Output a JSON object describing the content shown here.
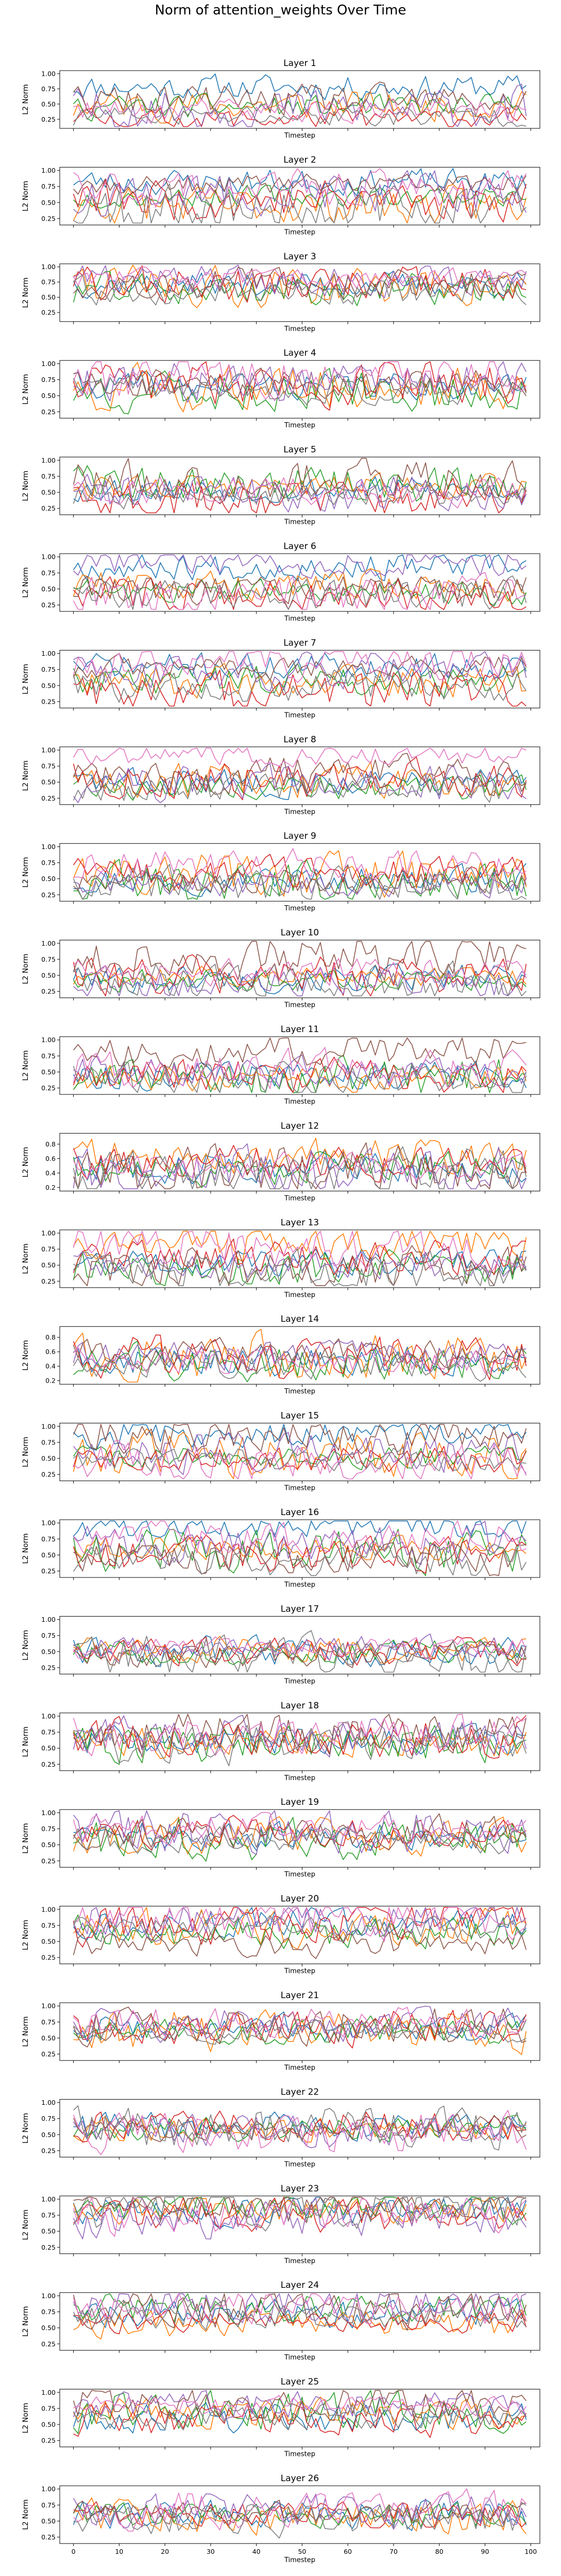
{
  "figure": {
    "title": "Norm of attention_weights Over Time"
  },
  "colors": [
    "#1f77b4",
    "#ff7f0e",
    "#2ca02c",
    "#d62728",
    "#9467bd",
    "#8c564b",
    "#e377c2",
    "#7f7f7f"
  ],
  "chart_data": {
    "type": "line",
    "xlim": [
      -3,
      102
    ],
    "x_ticks": [
      0,
      10,
      20,
      30,
      40,
      50,
      60,
      70,
      80,
      90,
      100
    ],
    "xlabel": "Timestep",
    "ylabel": "L2 Norm",
    "grid": false,
    "n_timesteps": 100,
    "series_per_panel": 8,
    "panels": [
      {
        "title": "Layer 1",
        "ylim": [
          0.1,
          1.05
        ],
        "yticks": [
          0.25,
          0.5,
          0.75,
          1.0
        ],
        "seed": 11,
        "levels": [
          0.78,
          0.48,
          0.45,
          0.25,
          0.42,
          0.55,
          0.38,
          0.3
        ]
      },
      {
        "title": "Layer 2",
        "ylim": [
          0.15,
          1.05
        ],
        "yticks": [
          0.25,
          0.5,
          0.75,
          1.0
        ],
        "seed": 23,
        "levels": [
          0.82,
          0.45,
          0.6,
          0.55,
          0.65,
          0.78,
          0.72,
          0.4
        ]
      },
      {
        "title": "Layer 3",
        "ylim": [
          0.1,
          1.05
        ],
        "yticks": [
          0.25,
          0.5,
          0.75,
          1.0
        ],
        "seed": 37,
        "levels": [
          0.72,
          0.68,
          0.62,
          0.7,
          0.78,
          0.74,
          0.8,
          0.6
        ]
      },
      {
        "title": "Layer 4",
        "ylim": [
          0.15,
          1.05
        ],
        "yticks": [
          0.25,
          0.5,
          0.75,
          1.0
        ],
        "seed": 41,
        "levels": [
          0.66,
          0.62,
          0.55,
          0.7,
          0.72,
          0.68,
          0.78,
          0.6
        ]
      },
      {
        "title": "Layer 5",
        "ylim": [
          0.15,
          1.05
        ],
        "yticks": [
          0.25,
          0.5,
          0.75,
          1.0
        ],
        "seed": 53,
        "levels": [
          0.55,
          0.58,
          0.62,
          0.4,
          0.48,
          0.7,
          0.52,
          0.45
        ]
      },
      {
        "title": "Layer 6",
        "ylim": [
          0.15,
          1.05
        ],
        "yticks": [
          0.25,
          0.5,
          0.75,
          1.0
        ],
        "seed": 67,
        "levels": [
          0.85,
          0.55,
          0.45,
          0.42,
          0.92,
          0.5,
          0.4,
          0.38
        ]
      },
      {
        "title": "Layer 7",
        "ylim": [
          0.15,
          1.05
        ],
        "yticks": [
          0.25,
          0.5,
          0.75,
          1.0
        ],
        "seed": 71,
        "levels": [
          0.8,
          0.55,
          0.6,
          0.4,
          0.72,
          0.78,
          0.85,
          0.5
        ]
      },
      {
        "title": "Layer 8",
        "ylim": [
          0.15,
          1.05
        ],
        "yticks": [
          0.25,
          0.5,
          0.75,
          1.0
        ],
        "seed": 83,
        "levels": [
          0.5,
          0.52,
          0.45,
          0.55,
          0.48,
          0.6,
          0.92,
          0.4
        ]
      },
      {
        "title": "Layer 9",
        "ylim": [
          0.15,
          1.05
        ],
        "yticks": [
          0.25,
          0.5,
          0.75,
          1.0
        ],
        "seed": 97,
        "levels": [
          0.5,
          0.55,
          0.42,
          0.58,
          0.4,
          0.45,
          0.72,
          0.38
        ]
      },
      {
        "title": "Layer 10",
        "ylim": [
          0.15,
          1.05
        ],
        "yticks": [
          0.25,
          0.5,
          0.75,
          1.0
        ],
        "seed": 101,
        "levels": [
          0.45,
          0.48,
          0.42,
          0.5,
          0.38,
          0.8,
          0.55,
          0.4
        ]
      },
      {
        "title": "Layer 11",
        "ylim": [
          0.15,
          1.05
        ],
        "yticks": [
          0.25,
          0.5,
          0.75,
          1.0
        ],
        "seed": 113,
        "levels": [
          0.45,
          0.4,
          0.42,
          0.45,
          0.5,
          0.82,
          0.55,
          0.38
        ]
      },
      {
        "title": "Layer 12",
        "ylim": [
          0.15,
          0.95
        ],
        "yticks": [
          0.2,
          0.4,
          0.6,
          0.8
        ],
        "seed": 127,
        "levels": [
          0.48,
          0.62,
          0.45,
          0.55,
          0.4,
          0.42,
          0.5,
          0.38
        ]
      },
      {
        "title": "Layer 13",
        "ylim": [
          0.15,
          1.05
        ],
        "yticks": [
          0.25,
          0.5,
          0.75,
          1.0
        ],
        "seed": 131,
        "levels": [
          0.55,
          0.85,
          0.45,
          0.6,
          0.5,
          0.45,
          0.78,
          0.4
        ]
      },
      {
        "title": "Layer 14",
        "ylim": [
          0.15,
          0.95
        ],
        "yticks": [
          0.2,
          0.4,
          0.6,
          0.8
        ],
        "seed": 149,
        "levels": [
          0.48,
          0.52,
          0.45,
          0.5,
          0.55,
          0.58,
          0.45,
          0.42
        ]
      },
      {
        "title": "Layer 15",
        "ylim": [
          0.15,
          1.05
        ],
        "yticks": [
          0.25,
          0.5,
          0.75,
          1.0
        ],
        "seed": 157,
        "levels": [
          0.9,
          0.55,
          0.52,
          0.5,
          0.6,
          0.88,
          0.45,
          0.48
        ]
      },
      {
        "title": "Layer 16",
        "ylim": [
          0.15,
          1.05
        ],
        "yticks": [
          0.25,
          0.5,
          0.75,
          1.0
        ],
        "seed": 163,
        "levels": [
          0.96,
          0.62,
          0.55,
          0.5,
          0.65,
          0.45,
          0.75,
          0.4
        ]
      },
      {
        "title": "Layer 17",
        "ylim": [
          0.15,
          1.05
        ],
        "yticks": [
          0.25,
          0.5,
          0.75,
          1.0
        ],
        "seed": 173,
        "levels": [
          0.5,
          0.52,
          0.48,
          0.5,
          0.58,
          0.45,
          0.55,
          0.42
        ]
      },
      {
        "title": "Layer 18",
        "ylim": [
          0.15,
          1.05
        ],
        "yticks": [
          0.25,
          0.5,
          0.75,
          1.0
        ],
        "seed": 181,
        "levels": [
          0.62,
          0.6,
          0.58,
          0.65,
          0.7,
          0.75,
          0.72,
          0.55
        ]
      },
      {
        "title": "Layer 19",
        "ylim": [
          0.15,
          1.05
        ],
        "yticks": [
          0.25,
          0.5,
          0.75,
          1.0
        ],
        "seed": 191,
        "levels": [
          0.65,
          0.62,
          0.6,
          0.68,
          0.72,
          0.7,
          0.75,
          0.58
        ]
      },
      {
        "title": "Layer 20",
        "ylim": [
          0.15,
          1.05
        ],
        "yticks": [
          0.25,
          0.5,
          0.75,
          1.0
        ],
        "seed": 199,
        "levels": [
          0.8,
          0.72,
          0.65,
          0.78,
          0.85,
          0.45,
          0.88,
          0.7
        ]
      },
      {
        "title": "Layer 21",
        "ylim": [
          0.15,
          1.05
        ],
        "yticks": [
          0.25,
          0.5,
          0.75,
          1.0
        ],
        "seed": 211,
        "levels": [
          0.65,
          0.62,
          0.6,
          0.68,
          0.72,
          0.7,
          0.75,
          0.6
        ]
      },
      {
        "title": "Layer 22",
        "ylim": [
          0.15,
          1.05
        ],
        "yticks": [
          0.25,
          0.5,
          0.75,
          1.0
        ],
        "seed": 223,
        "levels": [
          0.62,
          0.58,
          0.6,
          0.65,
          0.58,
          0.62,
          0.55,
          0.6
        ]
      },
      {
        "title": "Layer 23",
        "ylim": [
          0.15,
          1.05
        ],
        "yticks": [
          0.25,
          0.5,
          0.75,
          1.0
        ],
        "seed": 227,
        "levels": [
          0.8,
          0.82,
          0.88,
          0.78,
          0.7,
          0.92,
          0.75,
          0.85
        ]
      },
      {
        "title": "Layer 24",
        "ylim": [
          0.15,
          1.05
        ],
        "yticks": [
          0.25,
          0.5,
          0.75,
          1.0
        ],
        "seed": 233,
        "levels": [
          0.72,
          0.55,
          0.8,
          0.6,
          0.85,
          0.78,
          0.82,
          0.7
        ]
      },
      {
        "title": "Layer 25",
        "ylim": [
          0.15,
          1.05
        ],
        "yticks": [
          0.25,
          0.5,
          0.75,
          1.0
        ],
        "seed": 241,
        "levels": [
          0.6,
          0.65,
          0.7,
          0.58,
          0.78,
          0.85,
          0.8,
          0.62
        ]
      },
      {
        "title": "Layer 26",
        "ylim": [
          0.15,
          1.05
        ],
        "yticks": [
          0.25,
          0.5,
          0.75,
          1.0
        ],
        "seed": 251,
        "levels": [
          0.62,
          0.55,
          0.58,
          0.6,
          0.65,
          0.6,
          0.68,
          0.55
        ]
      }
    ]
  }
}
